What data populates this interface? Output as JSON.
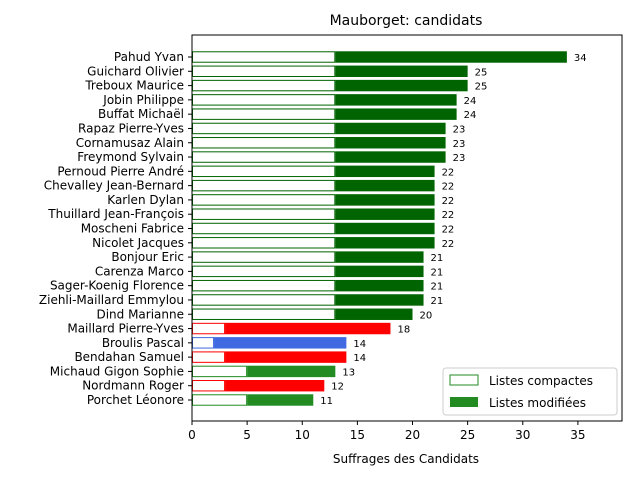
{
  "chart_data": {
    "type": "bar",
    "orientation": "horizontal",
    "stacked": true,
    "title": "Mauborget: candidats",
    "xlabel": "Suffrages des Candidats",
    "ylabel": "",
    "xlim": [
      0,
      39
    ],
    "xticks": [
      0,
      5,
      10,
      15,
      20,
      25,
      30,
      35
    ],
    "grid": false,
    "legend_position": "bottom-right",
    "categories": [
      "Pahud Yvan",
      "Guichard Olivier",
      "Treboux Maurice",
      "Jobin Philippe",
      "Buffat Michaël",
      "Rapaz Pierre-Yves",
      "Cornamusaz Alain",
      "Freymond Sylvain",
      "Pernoud Pierre André",
      "Chevalley Jean-Bernard",
      "Karlen Dylan",
      "Thuillard Jean-François",
      "Moscheni Fabrice",
      "Nicolet Jacques",
      "Bonjour Eric",
      "Carenza Marco",
      "Sager-Koenig Florence",
      "Ziehli-Maillard Emmylou",
      "Dind Marianne",
      "Maillard Pierre-Yves",
      "Broulis Pascal",
      "Bendahan Samuel",
      "Michaud Gigon Sophie",
      "Nordmann Roger",
      "Porchet Léonore"
    ],
    "colors": [
      "#006400",
      "#006400",
      "#006400",
      "#006400",
      "#006400",
      "#006400",
      "#006400",
      "#006400",
      "#006400",
      "#006400",
      "#006400",
      "#006400",
      "#006400",
      "#006400",
      "#006400",
      "#006400",
      "#006400",
      "#006400",
      "#006400",
      "#ff0000",
      "#4169e1",
      "#ff0000",
      "#228b22",
      "#ff0000",
      "#228b22"
    ],
    "series": [
      {
        "name": "Listes compactes",
        "style": "outline",
        "values": [
          13,
          13,
          13,
          13,
          13,
          13,
          13,
          13,
          13,
          13,
          13,
          13,
          13,
          13,
          13,
          13,
          13,
          13,
          13,
          3,
          2,
          3,
          5,
          3,
          5
        ]
      },
      {
        "name": "Listes modifiées",
        "style": "filled",
        "values": [
          21,
          12,
          12,
          11,
          11,
          10,
          10,
          10,
          9,
          9,
          9,
          9,
          9,
          9,
          8,
          8,
          8,
          8,
          7,
          15,
          12,
          11,
          8,
          9,
          6
        ]
      }
    ],
    "totals": [
      34,
      25,
      25,
      24,
      24,
      23,
      23,
      23,
      22,
      22,
      22,
      22,
      22,
      22,
      21,
      21,
      21,
      21,
      20,
      18,
      14,
      14,
      13,
      12,
      11
    ],
    "legend_colors": {
      "compactes_edge": "#228b22",
      "modifiees_fill": "#228b22"
    }
  }
}
